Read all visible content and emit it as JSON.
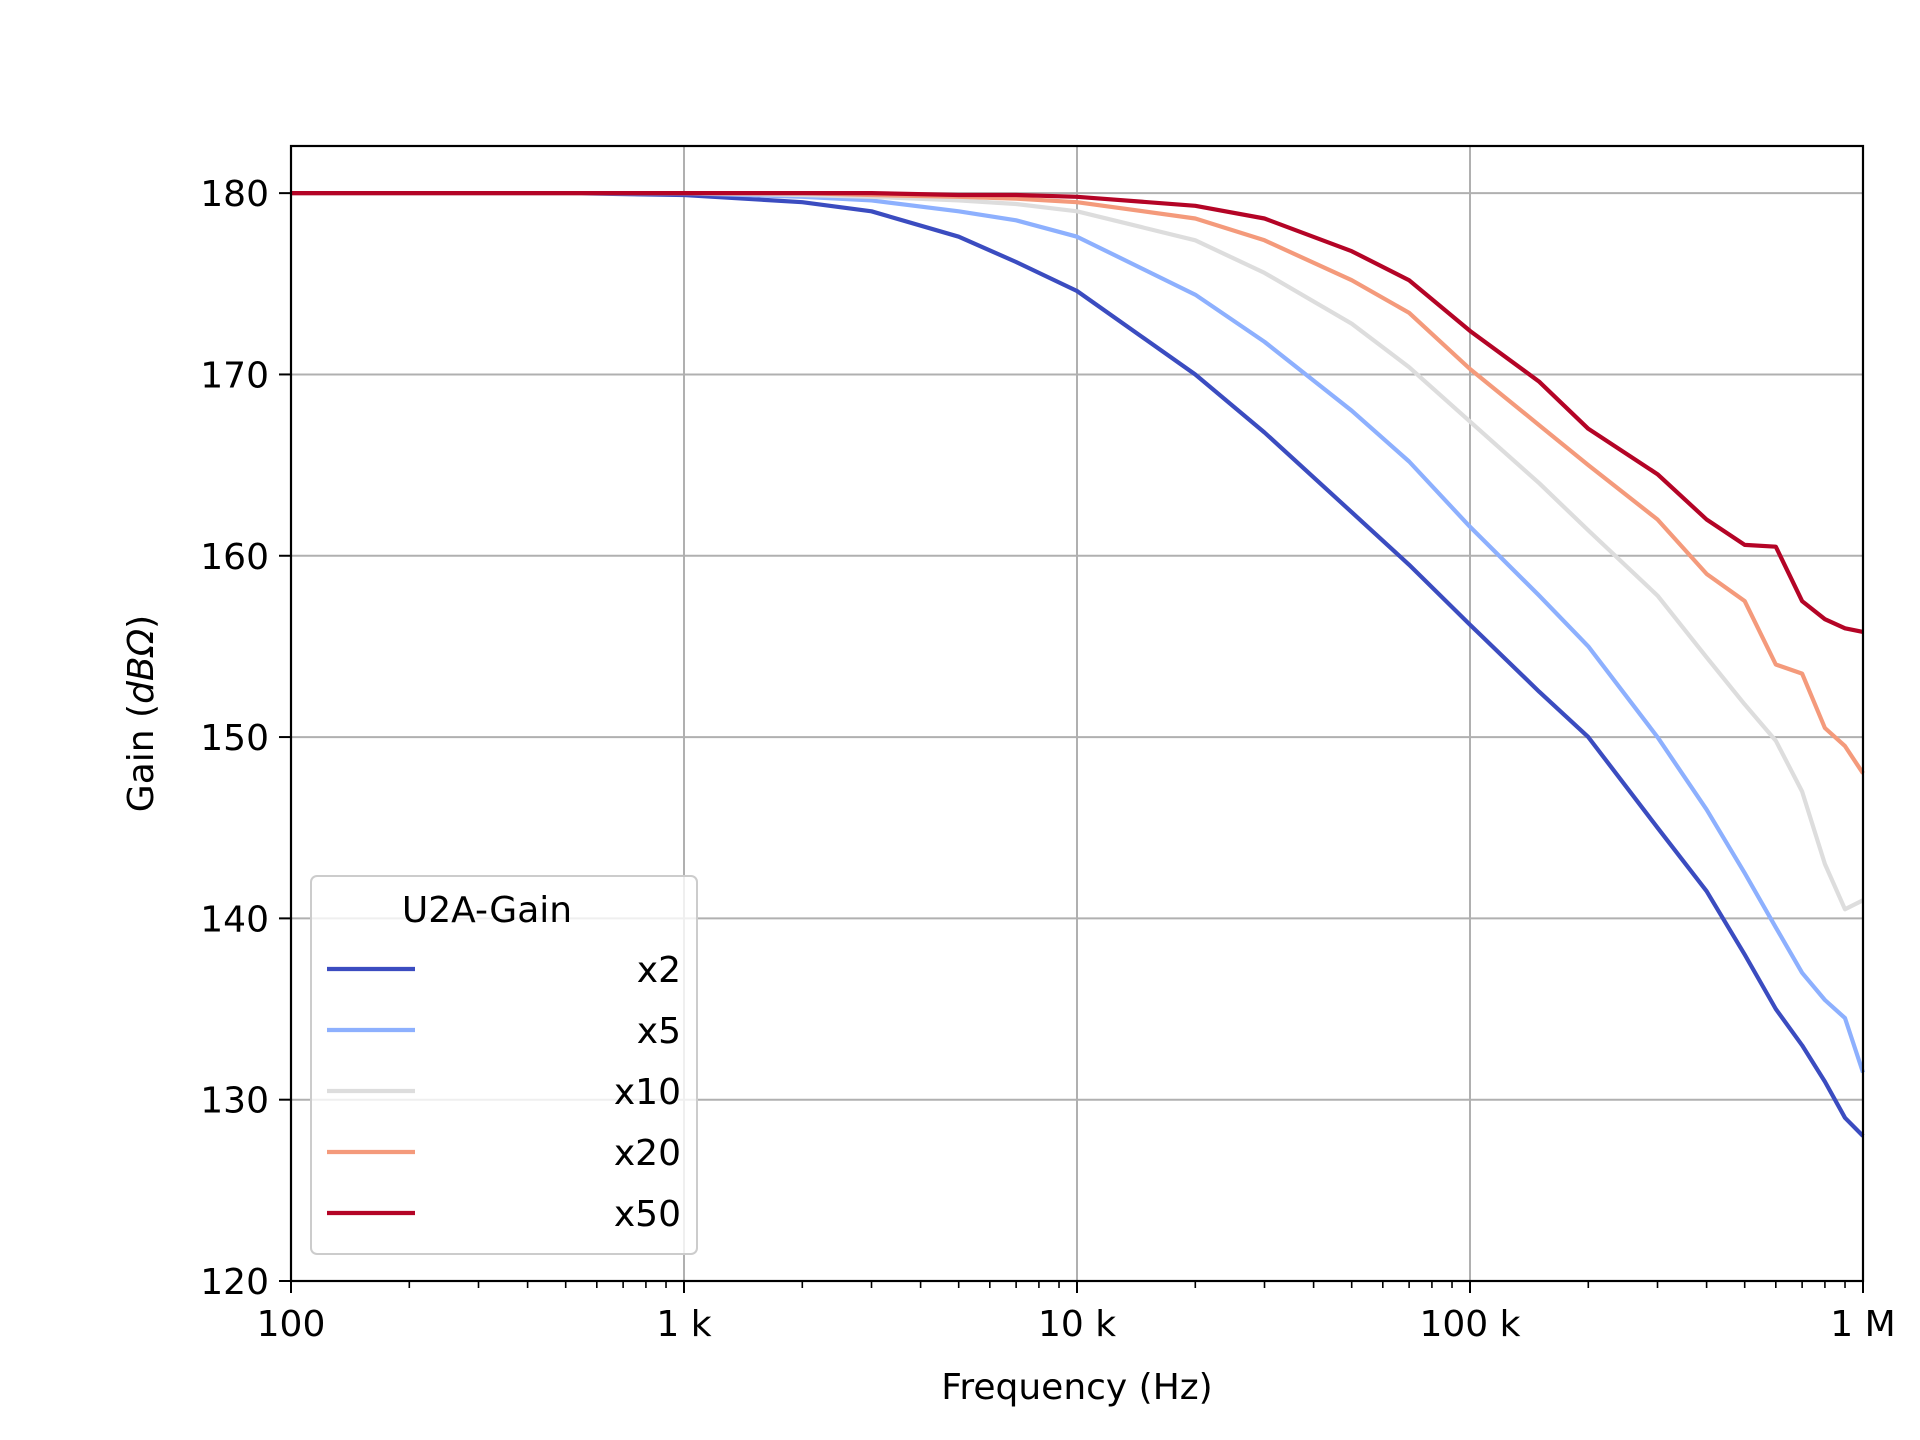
{
  "chart_data": {
    "type": "line",
    "xlabel": "Frequency (Hz)",
    "ylabel_prefix": "Gain (",
    "ylabel_unit": "dBΩ",
    "ylabel_suffix": ")",
    "xscale": "log",
    "xlim": [
      100,
      1000000
    ],
    "ylim": [
      120,
      182.6
    ],
    "grid": true,
    "x_ticks": [
      100,
      1000,
      10000,
      100000,
      1000000
    ],
    "x_tick_labels": [
      "100",
      "1 k",
      "10 k",
      "100 k",
      "1 M"
    ],
    "y_ticks": [
      120,
      130,
      140,
      150,
      160,
      170,
      180
    ],
    "y_tick_labels": [
      "120",
      "130",
      "140",
      "150",
      "160",
      "170",
      "180"
    ],
    "legend": {
      "title": "U2A-Gain",
      "placement": "lower-left"
    },
    "x": [
      100,
      200,
      500,
      1000,
      2000,
      3000,
      5000,
      7000,
      10000,
      20000,
      30000,
      50000,
      70000,
      100000,
      150000,
      200000,
      300000,
      400000,
      500000,
      600000,
      700000,
      800000,
      900000,
      1000000
    ],
    "series": [
      {
        "name": "x2",
        "color": "#3b4cc0",
        "values": [
          180.0,
          180.0,
          180.0,
          179.9,
          179.5,
          179.0,
          177.6,
          176.2,
          174.6,
          170.0,
          166.8,
          162.4,
          159.5,
          156.2,
          152.5,
          150.0,
          145.0,
          141.5,
          138.0,
          135.0,
          133.0,
          131.0,
          129.0,
          128.0
        ]
      },
      {
        "name": "x5",
        "color": "#8db0fe",
        "values": [
          180.0,
          180.0,
          180.0,
          180.0,
          179.8,
          179.6,
          179.0,
          178.5,
          177.6,
          174.4,
          171.8,
          168.0,
          165.2,
          161.6,
          157.8,
          155.0,
          150.0,
          146.0,
          142.5,
          139.5,
          137.0,
          135.5,
          134.5,
          131.5
        ]
      },
      {
        "name": "x10",
        "color": "#dddddd",
        "values": [
          180.0,
          180.0,
          180.0,
          180.0,
          179.9,
          179.8,
          179.6,
          179.4,
          179.0,
          177.4,
          175.6,
          172.8,
          170.4,
          167.4,
          164.0,
          161.4,
          157.8,
          154.4,
          151.8,
          149.8,
          147.0,
          143.0,
          140.5,
          141.0
        ]
      },
      {
        "name": "x20",
        "color": "#f49a7b",
        "values": [
          180.0,
          180.0,
          180.0,
          180.0,
          180.0,
          179.9,
          179.8,
          179.7,
          179.5,
          178.6,
          177.4,
          175.2,
          173.4,
          170.3,
          167.2,
          165.0,
          162.0,
          159.0,
          157.5,
          154.0,
          153.5,
          150.5,
          149.5,
          148.0
        ]
      },
      {
        "name": "x50",
        "color": "#b40426",
        "values": [
          180.0,
          180.0,
          180.0,
          180.0,
          180.0,
          180.0,
          179.9,
          179.9,
          179.8,
          179.3,
          178.6,
          176.8,
          175.2,
          172.4,
          169.6,
          167.0,
          164.5,
          162.0,
          160.6,
          160.5,
          157.5,
          156.5,
          156.0,
          155.8
        ]
      }
    ]
  }
}
